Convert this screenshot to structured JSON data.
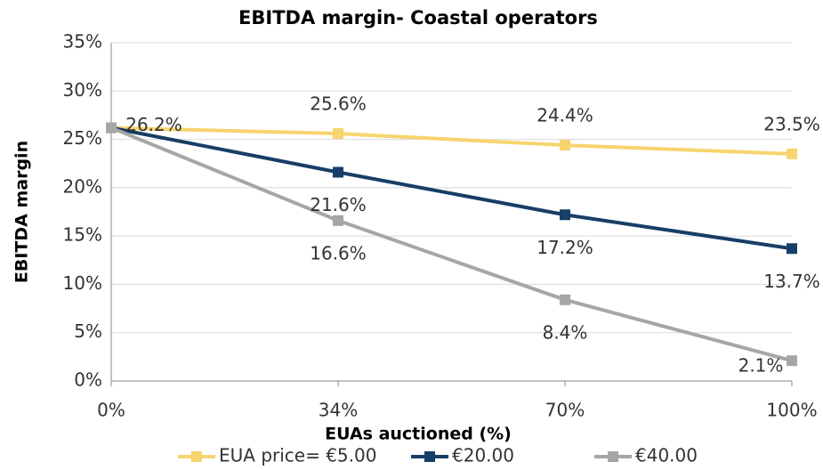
{
  "chart_data": {
    "type": "line",
    "title": "EBITDA margin- Coastal operators",
    "x_label": "EUAs auctioned (%)",
    "y_label": "EBITDA margin",
    "categories": [
      "0%",
      "34%",
      "70%",
      "100%"
    ],
    "series": [
      {
        "name": "EUA price= €5.00",
        "color": "#f7d46e",
        "values": [
          26.2,
          25.6,
          24.4,
          23.5
        ],
        "value_labels": [
          "26.2%",
          "25.6%",
          "24.4%",
          "23.5%"
        ]
      },
      {
        "name": "€20.00",
        "color": "#173e66",
        "values": [
          26.2,
          21.6,
          17.2,
          13.7
        ],
        "value_labels": [
          null,
          "21.6%",
          "17.2%",
          "13.7%"
        ]
      },
      {
        "name": "€40.00",
        "color": "#a6a6a6",
        "values": [
          26.2,
          16.6,
          8.4,
          2.1
        ],
        "value_labels": [
          null,
          "16.6%",
          "8.4%",
          "2.1%"
        ]
      }
    ],
    "ylim": [
      0,
      35
    ],
    "yticks": [
      {
        "value": 0,
        "label": "0%"
      },
      {
        "value": 5,
        "label": "5%"
      },
      {
        "value": 10,
        "label": "10%"
      },
      {
        "value": 15,
        "label": "15%"
      },
      {
        "value": 20,
        "label": "20%"
      },
      {
        "value": 25,
        "label": "25%"
      },
      {
        "value": 30,
        "label": "30%"
      },
      {
        "value": 35,
        "label": "35%"
      }
    ],
    "grid": true,
    "legend": "bottom"
  }
}
